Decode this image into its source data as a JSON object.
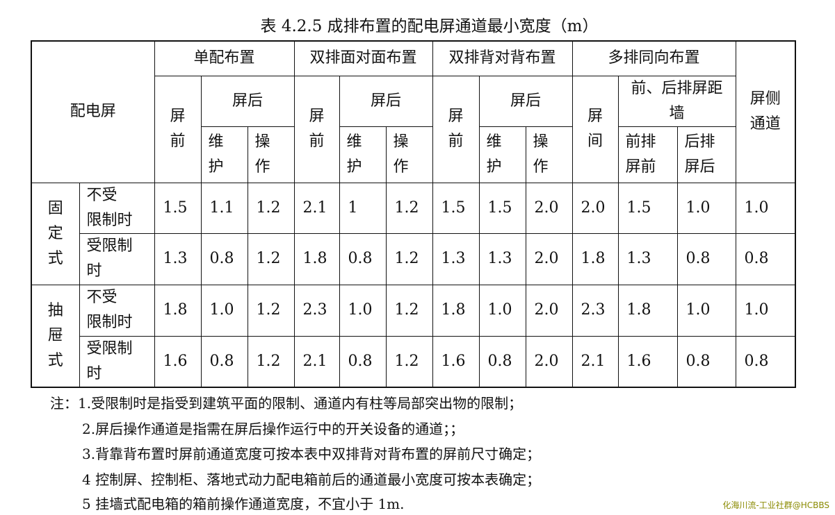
{
  "title": "表 4.2.5 成排布置的配电屏通道最小宽度（m）",
  "header": {
    "corner": "配电屏",
    "groups": [
      "单配布置",
      "双排面对面布置",
      "双排背对背布置",
      "多排同向布置"
    ],
    "side": "屏侧\n通道",
    "screen_front": "屏\n前",
    "screen_back": "屏后",
    "screen_between": "屏\n间",
    "front_back_distance": "前、后排屏距\n墙",
    "maintain": "维\n护",
    "operate": "操\n作",
    "front_row_front": "前排\n屏前",
    "back_row_back": "后排\n屏后"
  },
  "rows": [
    {
      "type": "固\n定\n式",
      "cond": "不受\n限制时",
      "values": [
        "1.5",
        "1.1",
        "1.2",
        "2.1",
        "1",
        "1.2",
        "1.5",
        "1.5",
        "2.0",
        "2.0",
        "1.5",
        "1.0",
        "1.0"
      ]
    },
    {
      "type": "",
      "cond": "受限制\n时",
      "values": [
        "1.3",
        "0.8",
        "1.2",
        "1.8",
        "0.8",
        "1.2",
        "1.3",
        "1.3",
        "2.0",
        "1.8",
        "1.3",
        "0.8",
        "0.8"
      ]
    },
    {
      "type": "抽\n屉\n式",
      "cond": "不受\n限制时",
      "values": [
        "1.8",
        "1.0",
        "1.2",
        "2.3",
        "1.0",
        "1.2",
        "1.8",
        "1.0",
        "2.0",
        "2.3",
        "1.8",
        "1.0",
        "1.0"
      ]
    },
    {
      "type": "",
      "cond": "受限制\n时",
      "values": [
        "1.6",
        "0.8",
        "1.2",
        "2.1",
        "0.8",
        "1.2",
        "1.6",
        "0.8",
        "2.0",
        "2.1",
        "1.6",
        "0.8",
        "0.8"
      ]
    }
  ],
  "notes": [
    "注：1.受限制时是指受到建筑平面的限制、通道内有柱等局部突出物的限制；",
    "2.屏后操作通道是指需在屏后操作运行中的开关设备的通道；；",
    "3.背靠背布置时屏前通道宽度可按本表中双排背对背布置的屏前尺寸确定；",
    "4 控制屏、控制柜、落地式动力配电箱前后的通道最小宽度可按本表确定；",
    "5 挂墙式配电箱的箱前操作通道宽度，不宜小于 1m."
  ],
  "watermark": "化海川流-工业社群@HCBBS"
}
